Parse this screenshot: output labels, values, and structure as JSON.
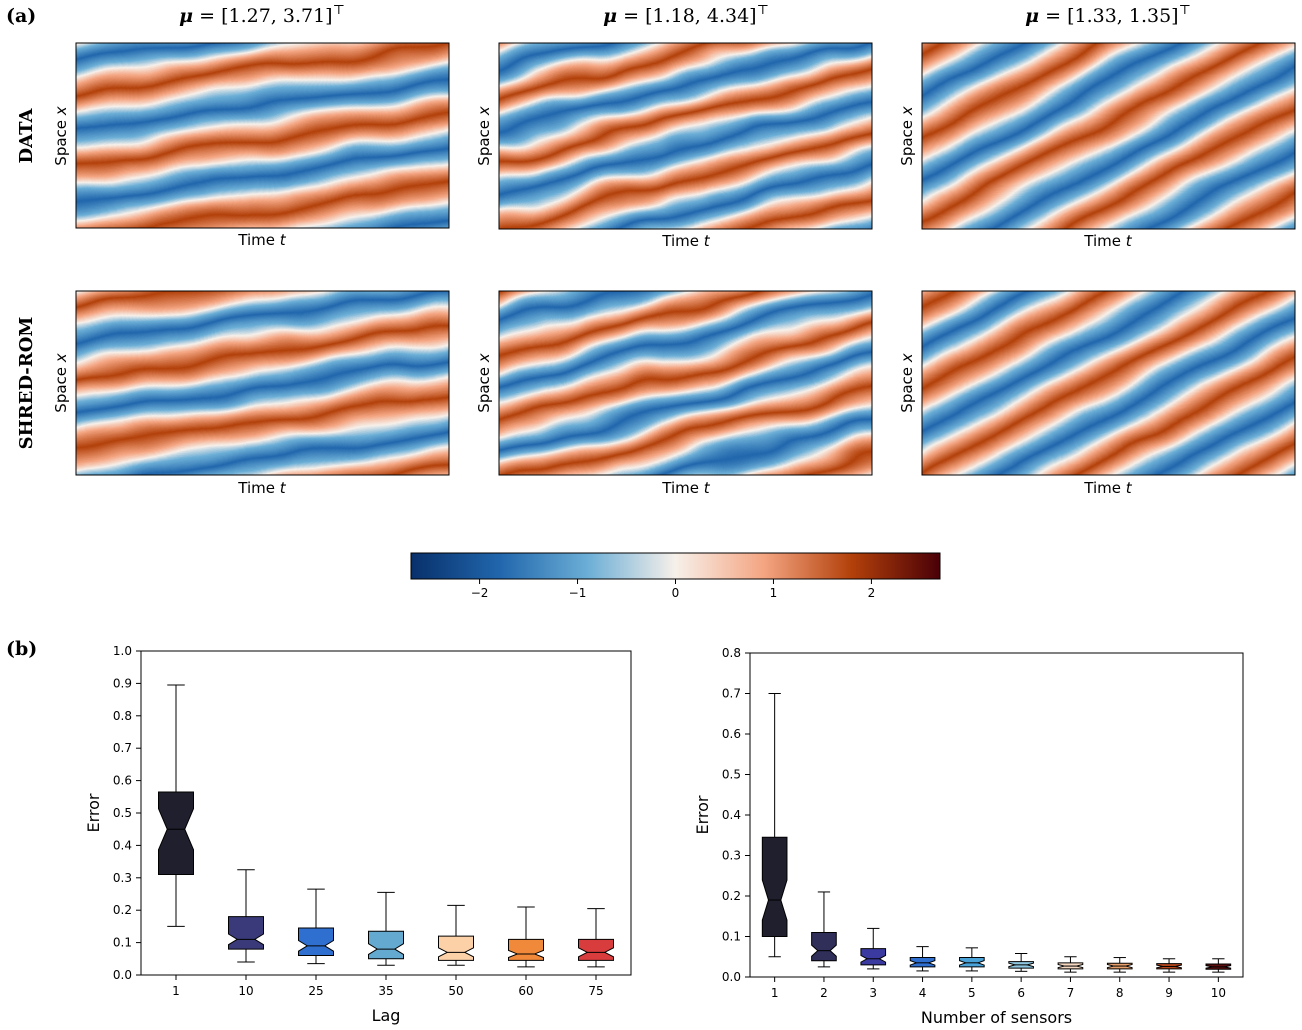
{
  "panel_labels": {
    "a": "(a)",
    "b": "(b)"
  },
  "row_labels": {
    "data": "DATA",
    "shred": "SHRED-ROM"
  },
  "columns": [
    {
      "mu_symbol": "μ",
      "mu_value": " = [1.27, 3.71]",
      "transpose": "⊤",
      "xlabel": "Time",
      "xvar": "t",
      "ylabel": "Space",
      "yvar": "x"
    },
    {
      "mu_symbol": "μ",
      "mu_value": " = [1.18, 4.34]",
      "transpose": "⊤",
      "xlabel": "Time",
      "xvar": "t",
      "ylabel": "Space",
      "yvar": "x"
    },
    {
      "mu_symbol": "μ",
      "mu_value": " = [1.33, 1.35]",
      "transpose": "⊤",
      "xlabel": "Time",
      "xvar": "t",
      "ylabel": "Space",
      "yvar": "x"
    }
  ],
  "colorbar": {
    "range": [
      -2.7,
      2.7
    ],
    "ticks": [
      -2,
      -1,
      0,
      1,
      2
    ],
    "tick_labels": [
      "−2",
      "−1",
      "0",
      "1",
      "2"
    ],
    "colors": [
      "#08306b",
      "#2166ac",
      "#6baed6",
      "#f7f0ea",
      "#f4a582",
      "#b2400a",
      "#4a0008"
    ]
  },
  "chart_data": [
    {
      "type": "heatmap",
      "title": "μ = [1.27, 3.71]⊤",
      "rows": [
        "DATA",
        "SHRED-ROM"
      ],
      "xlabel": "Time t",
      "ylabel": "Space x",
      "value_range": [
        -2.7,
        2.7
      ]
    },
    {
      "type": "heatmap",
      "title": "μ = [1.18, 4.34]⊤",
      "rows": [
        "DATA",
        "SHRED-ROM"
      ],
      "xlabel": "Time t",
      "ylabel": "Space x",
      "value_range": [
        -2.7,
        2.7
      ]
    },
    {
      "type": "heatmap",
      "title": "μ = [1.33, 1.35]⊤",
      "rows": [
        "DATA",
        "SHRED-ROM"
      ],
      "xlabel": "Time t",
      "ylabel": "Space x",
      "value_range": [
        -2.7,
        2.7
      ]
    },
    {
      "type": "box",
      "xlabel": "Lag",
      "ylabel": "Error",
      "ylim": [
        0,
        1.0
      ],
      "yticks": [
        "0.0",
        "0.1",
        "0.2",
        "0.3",
        "0.4",
        "0.5",
        "0.6",
        "0.7",
        "0.8",
        "0.9",
        "1.0"
      ],
      "ytick_values": [
        0,
        0.1,
        0.2,
        0.3,
        0.4,
        0.5,
        0.6,
        0.7,
        0.8,
        0.9,
        1.0
      ],
      "categories": [
        "1",
        "10",
        "25",
        "35",
        "50",
        "60",
        "75"
      ],
      "boxes": [
        {
          "whisker_low": 0.15,
          "q1": 0.31,
          "median": 0.45,
          "q3": 0.565,
          "whisker_high": 0.895,
          "color": "#1f1f2e"
        },
        {
          "whisker_low": 0.04,
          "q1": 0.08,
          "median": 0.11,
          "q3": 0.18,
          "whisker_high": 0.325,
          "color": "#3a3a7a"
        },
        {
          "whisker_low": 0.035,
          "q1": 0.06,
          "median": 0.09,
          "q3": 0.145,
          "whisker_high": 0.265,
          "color": "#2f6fd0"
        },
        {
          "whisker_low": 0.03,
          "q1": 0.05,
          "median": 0.08,
          "q3": 0.135,
          "whisker_high": 0.255,
          "color": "#63a9d0"
        },
        {
          "whisker_low": 0.03,
          "q1": 0.045,
          "median": 0.07,
          "q3": 0.12,
          "whisker_high": 0.215,
          "color": "#fdd1a8"
        },
        {
          "whisker_low": 0.025,
          "q1": 0.045,
          "median": 0.065,
          "q3": 0.11,
          "whisker_high": 0.21,
          "color": "#f08a3a"
        },
        {
          "whisker_low": 0.025,
          "q1": 0.045,
          "median": 0.07,
          "q3": 0.11,
          "whisker_high": 0.205,
          "color": "#d93c3c"
        }
      ]
    },
    {
      "type": "box",
      "xlabel": "Number of sensors",
      "ylabel": "Error",
      "ylim": [
        0,
        0.8
      ],
      "yticks": [
        "0.0",
        "0.1",
        "0.2",
        "0.3",
        "0.4",
        "0.5",
        "0.6",
        "0.7",
        "0.8"
      ],
      "ytick_values": [
        0,
        0.1,
        0.2,
        0.3,
        0.4,
        0.5,
        0.6,
        0.7,
        0.8
      ],
      "categories": [
        "1",
        "2",
        "3",
        "4",
        "5",
        "6",
        "7",
        "8",
        "9",
        "10"
      ],
      "boxes": [
        {
          "whisker_low": 0.05,
          "q1": 0.1,
          "median": 0.19,
          "q3": 0.345,
          "whisker_high": 0.7,
          "color": "#1f1f2e"
        },
        {
          "whisker_low": 0.025,
          "q1": 0.04,
          "median": 0.065,
          "q3": 0.11,
          "whisker_high": 0.21,
          "color": "#2f2f5a"
        },
        {
          "whisker_low": 0.02,
          "q1": 0.03,
          "median": 0.045,
          "q3": 0.07,
          "whisker_high": 0.12,
          "color": "#3a3aa0"
        },
        {
          "whisker_low": 0.015,
          "q1": 0.025,
          "median": 0.035,
          "q3": 0.048,
          "whisker_high": 0.075,
          "color": "#2f6fd0"
        },
        {
          "whisker_low": 0.015,
          "q1": 0.025,
          "median": 0.035,
          "q3": 0.048,
          "whisker_high": 0.072,
          "color": "#4aa3d8"
        },
        {
          "whisker_low": 0.014,
          "q1": 0.022,
          "median": 0.03,
          "q3": 0.038,
          "whisker_high": 0.058,
          "color": "#8fc7e0"
        },
        {
          "whisker_low": 0.012,
          "q1": 0.02,
          "median": 0.027,
          "q3": 0.035,
          "whisker_high": 0.05,
          "color": "#f6d9c0"
        },
        {
          "whisker_low": 0.012,
          "q1": 0.02,
          "median": 0.027,
          "q3": 0.034,
          "whisker_high": 0.048,
          "color": "#e9a06a"
        },
        {
          "whisker_low": 0.012,
          "q1": 0.02,
          "median": 0.026,
          "q3": 0.033,
          "whisker_high": 0.045,
          "color": "#b6461c"
        },
        {
          "whisker_low": 0.012,
          "q1": 0.019,
          "median": 0.025,
          "q3": 0.032,
          "whisker_high": 0.045,
          "color": "#5a0e0e"
        }
      ]
    }
  ]
}
